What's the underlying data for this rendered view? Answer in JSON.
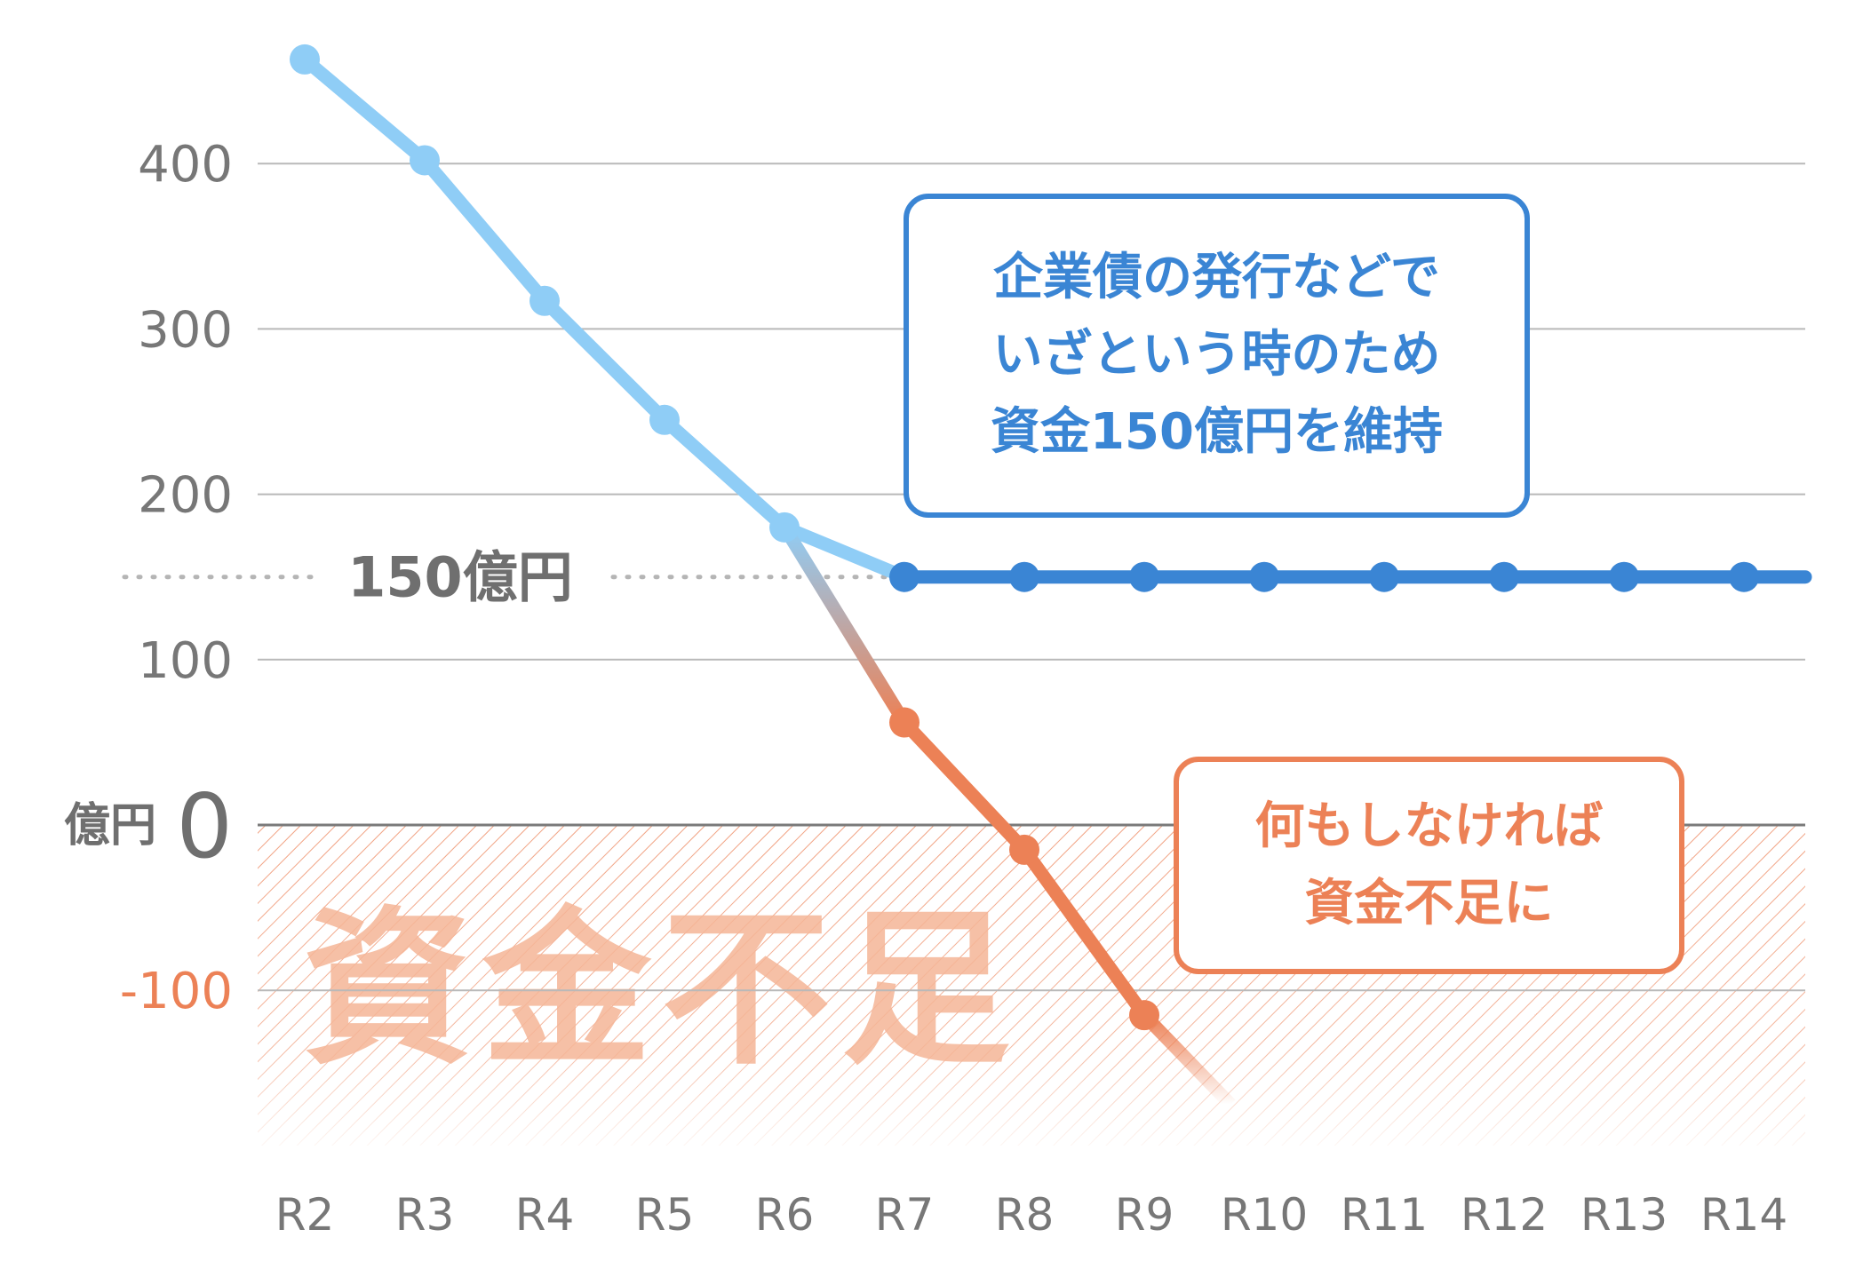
{
  "chart_data": {
    "type": "line",
    "categories": [
      "R2",
      "R3",
      "R4",
      "R5",
      "R6",
      "R7",
      "R8",
      "R9",
      "R10",
      "R11",
      "R12",
      "R13",
      "R14"
    ],
    "ylim": [
      -200,
      470
    ],
    "yticks": [
      {
        "value": 400,
        "label": "400"
      },
      {
        "value": 300,
        "label": "300"
      },
      {
        "value": 200,
        "label": "200"
      },
      {
        "value": 100,
        "label": "100"
      },
      {
        "value": 0,
        "label": "0",
        "unit": "億円"
      },
      {
        "value": -100,
        "label": "-100"
      }
    ],
    "reference_line": {
      "value": 150,
      "label": "150億円"
    },
    "series": [
      {
        "key": "maintain",
        "color_past": "#8fcdf6",
        "color": "#3a85d4",
        "x": [
          "R2",
          "R3",
          "R4",
          "R5",
          "R6",
          "R7",
          "R8",
          "R9",
          "R10",
          "R11",
          "R12",
          "R13",
          "R14"
        ],
        "values": [
          463,
          402,
          317,
          245,
          180,
          150,
          150,
          150,
          150,
          150,
          150,
          150,
          150
        ]
      },
      {
        "key": "nothing",
        "color": "#ec8156",
        "x": [
          "R6",
          "R7",
          "R8",
          "R9",
          "R10"
        ],
        "values": [
          180,
          62,
          -15,
          -115,
          -190
        ]
      }
    ],
    "shortage_label": "資金不足",
    "callouts": [
      {
        "key": "maintain",
        "lines": [
          "企業債の発行などで",
          "いざという時のため",
          "資金150億円を維持"
        ]
      },
      {
        "key": "nothing",
        "lines": [
          "何もしなければ",
          "資金不足に"
        ]
      }
    ],
    "grid": true
  }
}
